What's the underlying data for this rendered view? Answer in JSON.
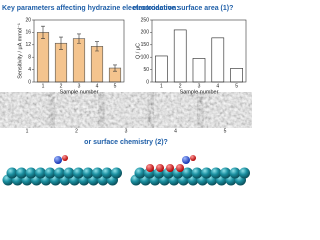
{
  "heading": {
    "left": "Key parameters affecting hydrazine electrooxidation:",
    "right": "electroactive surface area (1)?"
  },
  "chart_data": [
    {
      "type": "bar",
      "categories": [
        "1",
        "2",
        "3",
        "4",
        "5"
      ],
      "values": [
        16,
        12.5,
        14,
        11.5,
        4.5
      ],
      "errors": [
        2,
        2,
        1.5,
        1.5,
        1
      ],
      "color": "#f4c48e",
      "edge": "#555555",
      "ylim": [
        0,
        20
      ],
      "yticks": [
        0,
        4,
        8,
        12,
        16,
        20
      ],
      "ylabel": "Sensitivity / μA mmol⁻¹",
      "xlabel": "Sample number"
    },
    {
      "type": "bar",
      "categories": [
        "1",
        "2",
        "3",
        "4",
        "5"
      ],
      "values": [
        105,
        210,
        95,
        178,
        55
      ],
      "color": "#ffffff",
      "edge": "#222222",
      "ylim": [
        0,
        250
      ],
      "yticks": [
        0,
        50,
        100,
        150,
        200,
        250
      ],
      "ylabel": "Q / μC",
      "xlabel": "Sample number"
    }
  ],
  "sem_labels": [
    "1",
    "2",
    "3",
    "4",
    "5"
  ],
  "footer": "or surface chemistry (2)?"
}
